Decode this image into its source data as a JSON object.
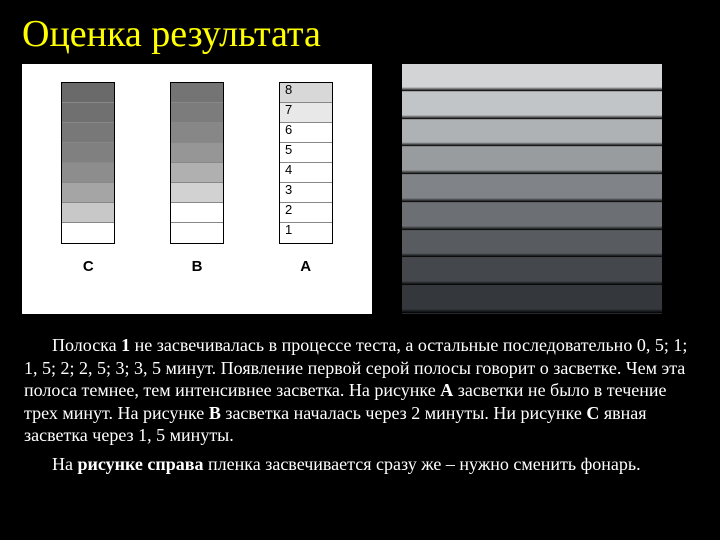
{
  "title": "Оценка результата",
  "diagram": {
    "background": "#ffffff",
    "columns": [
      {
        "label": "C",
        "cells": [
          "#6a6a6a",
          "#707070",
          "#787878",
          "#808080",
          "#8d8d8d",
          "#a5a5a5",
          "#c8c8c8",
          "#ffffff"
        ]
      },
      {
        "label": "B",
        "cells": [
          "#747474",
          "#7c7c7c",
          "#878787",
          "#969696",
          "#b0b0b0",
          "#d2d2d2",
          "#ffffff",
          "#ffffff"
        ]
      },
      {
        "label": "A",
        "cells": [
          "#d8d8d8",
          "#e8e8e8",
          "#ffffff",
          "#ffffff",
          "#ffffff",
          "#ffffff",
          "#ffffff",
          "#ffffff"
        ]
      }
    ],
    "row_labels": [
      "8",
      "7",
      "6",
      "5",
      "4",
      "3",
      "2",
      "1"
    ]
  },
  "photo": {
    "strips": [
      "#d2d4d6",
      "#c2c5c8",
      "#aeb2b5",
      "#989c9f",
      "#808488",
      "#6c7074",
      "#585c60",
      "#44484c",
      "#34383c"
    ]
  },
  "paragraphs": {
    "p1_a": "Полоска ",
    "p1_b": "1",
    "p1_c": " не засвечивалась в процессе теста, а остальные последовательно 0, 5; 1; 1, 5; 2; 2, 5; 3; 3, 5 минут. Появление первой серой полосы говорит о засветке. Чем эта полоса темнее, тем интенсивнее засветка. На рисунке ",
    "p1_d": "А",
    "p1_e": " засветки не было в течение трех минут. На рисунке ",
    "p1_f": "В",
    "p1_g": " засветка началась через 2 минуты. Ни рисунке ",
    "p1_h": "С",
    "p1_i": " явная засветка через 1, 5 минуты.",
    "p2_a": "На ",
    "p2_b": "рисунке справа",
    "p2_c": " пленка засвечивается сразу же – нужно сменить фонарь."
  }
}
